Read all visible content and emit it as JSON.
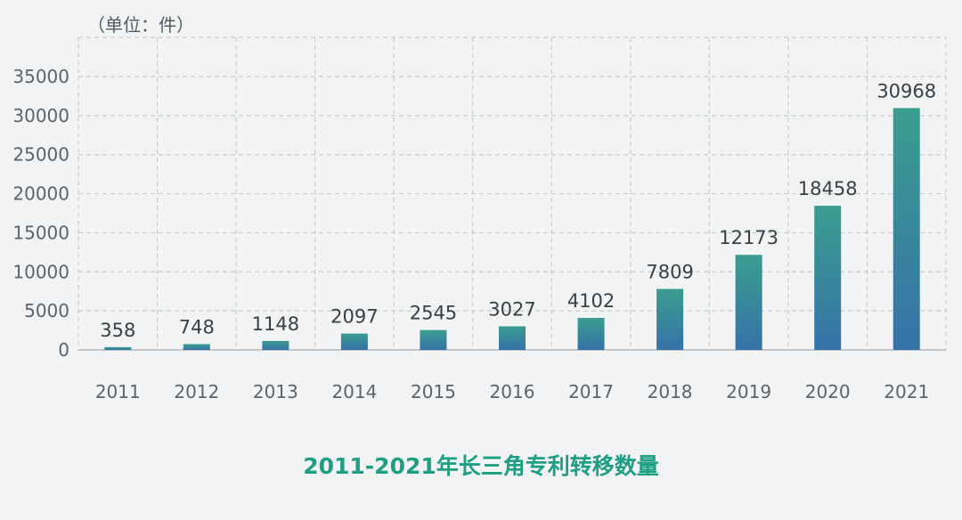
{
  "chart_data": {
    "type": "bar",
    "title": "2011-2021年长三角专利转移数量",
    "unit_label": "（单位：件）",
    "xlabel": "",
    "ylabel": "",
    "categories": [
      "2011",
      "2012",
      "2013",
      "2014",
      "2015",
      "2016",
      "2017",
      "2018",
      "2019",
      "2020",
      "2021"
    ],
    "values": [
      358,
      748,
      1148,
      2097,
      2545,
      3027,
      4102,
      7809,
      12173,
      18458,
      30968
    ],
    "ylim": [
      0,
      35000
    ],
    "yticks": [
      "0",
      "5000",
      "10000",
      "15000",
      "20000",
      "25000",
      "30000",
      "35000"
    ],
    "grid": true,
    "legend": "none",
    "colors": {
      "bar_top": "#3a9d8f",
      "bar_bottom": "#3672a8",
      "title": "#1e9f83",
      "grid": "#c9cccd",
      "background": "#f1f3f4"
    }
  }
}
